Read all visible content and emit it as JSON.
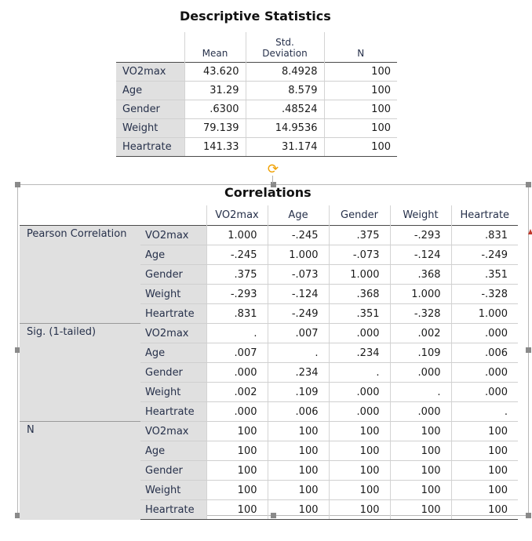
{
  "descriptive": {
    "title": "Descriptive Statistics",
    "headers": [
      "Mean",
      "Std. Deviation",
      "N"
    ],
    "rows": [
      {
        "label": "VO2max",
        "mean": "43.620",
        "sd": "8.4928",
        "n": "100"
      },
      {
        "label": "Age",
        "mean": "31.29",
        "sd": "8.579",
        "n": "100"
      },
      {
        "label": "Gender",
        "mean": ".6300",
        "sd": ".48524",
        "n": "100"
      },
      {
        "label": "Weight",
        "mean": "79.139",
        "sd": "14.9536",
        "n": "100"
      },
      {
        "label": "Heartrate",
        "mean": "141.33",
        "sd": "31.174",
        "n": "100"
      }
    ]
  },
  "correlations": {
    "title": "Correlations",
    "columns": [
      "VO2max",
      "Age",
      "Gender",
      "Weight",
      "Heartrate"
    ],
    "groups": [
      {
        "label": "Pearson Correlation",
        "rows": [
          {
            "var": "VO2max",
            "values": [
              "1.000",
              "-.245",
              ".375",
              "-.293",
              ".831"
            ]
          },
          {
            "var": "Age",
            "values": [
              "-.245",
              "1.000",
              "-.073",
              "-.124",
              "-.249"
            ]
          },
          {
            "var": "Gender",
            "values": [
              ".375",
              "-.073",
              "1.000",
              ".368",
              ".351"
            ]
          },
          {
            "var": "Weight",
            "values": [
              "-.293",
              "-.124",
              ".368",
              "1.000",
              "-.328"
            ]
          },
          {
            "var": "Heartrate",
            "values": [
              ".831",
              "-.249",
              ".351",
              "-.328",
              "1.000"
            ]
          }
        ]
      },
      {
        "label": "Sig. (1-tailed)",
        "rows": [
          {
            "var": "VO2max",
            "values": [
              ".",
              ".007",
              ".000",
              ".002",
              ".000"
            ]
          },
          {
            "var": "Age",
            "values": [
              ".007",
              ".",
              ".234",
              ".109",
              ".006"
            ]
          },
          {
            "var": "Gender",
            "values": [
              ".000",
              ".234",
              ".",
              ".000",
              ".000"
            ]
          },
          {
            "var": "Weight",
            "values": [
              ".002",
              ".109",
              ".000",
              ".",
              ".000"
            ]
          },
          {
            "var": "Heartrate",
            "values": [
              ".000",
              ".006",
              ".000",
              ".000",
              "."
            ]
          }
        ]
      },
      {
        "label": "N",
        "rows": [
          {
            "var": "VO2max",
            "values": [
              "100",
              "100",
              "100",
              "100",
              "100"
            ]
          },
          {
            "var": "Age",
            "values": [
              "100",
              "100",
              "100",
              "100",
              "100"
            ]
          },
          {
            "var": "Gender",
            "values": [
              "100",
              "100",
              "100",
              "100",
              "100"
            ]
          },
          {
            "var": "Weight",
            "values": [
              "100",
              "100",
              "100",
              "100",
              "100"
            ]
          },
          {
            "var": "Heartrate",
            "values": [
              "100",
              "100",
              "100",
              "100",
              "100"
            ]
          }
        ]
      }
    ]
  },
  "icons": {
    "rotate": "rotate-icon",
    "handle": "resize-handle"
  },
  "colors": {
    "row_label_bg": "#e0e0e0",
    "label_text": "#26304a",
    "rotate_handle": "#f0a000",
    "marker": "#c0392b"
  }
}
